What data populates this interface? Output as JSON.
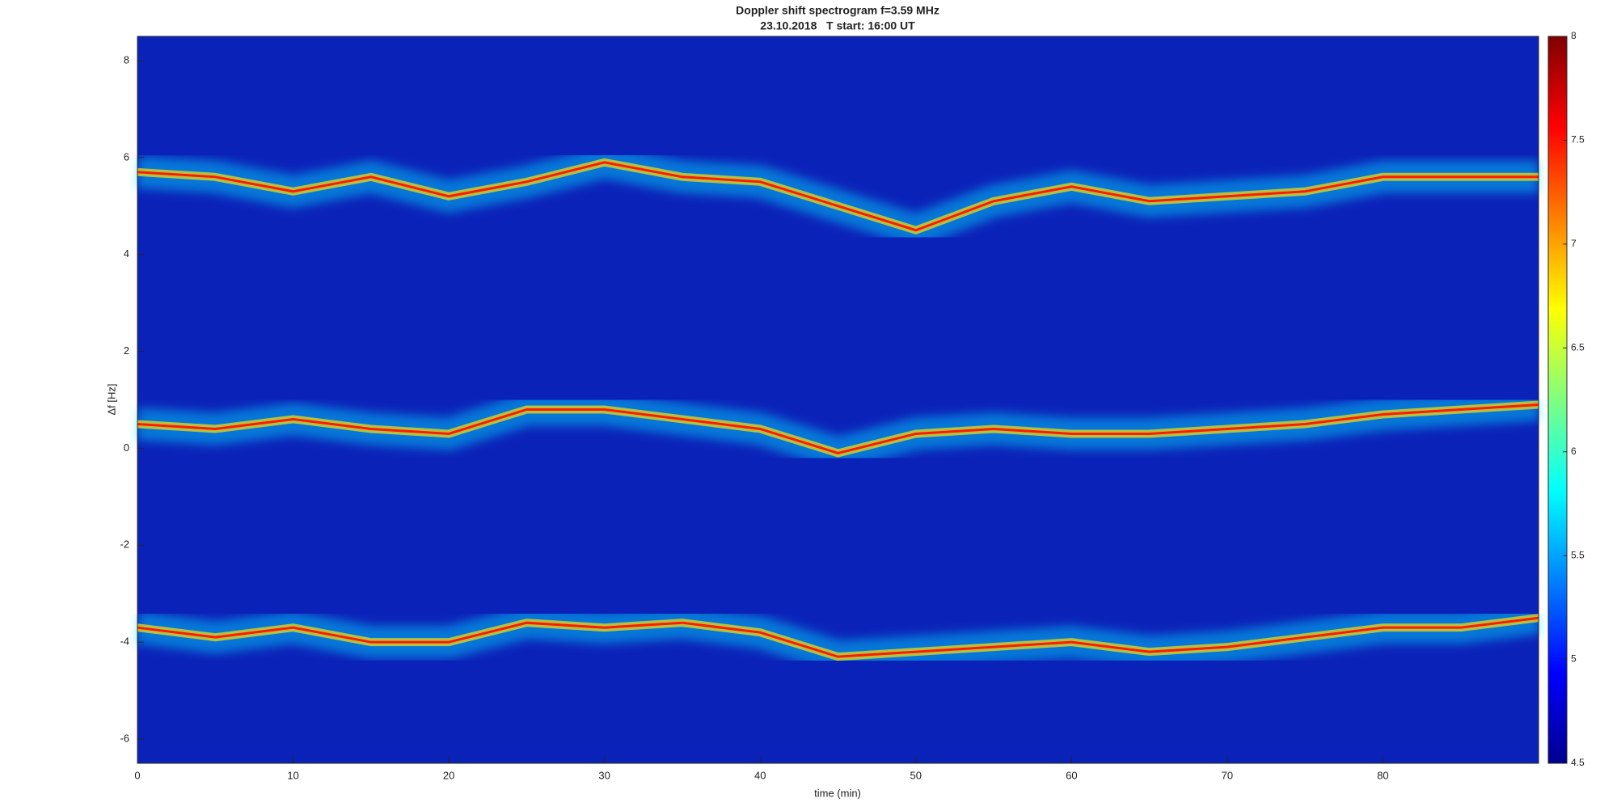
{
  "chart_data": {
    "type": "spectrogram",
    "title": "Doppler shift spectrogram f=3.59 MHz",
    "subtitle": "23.10.2018   T start: 16:00 UT",
    "x_label": "time (min)",
    "y_label": "Δf [Hz]",
    "xlim": [
      0,
      90
    ],
    "xticks": [
      0,
      10,
      20,
      30,
      40,
      50,
      60,
      70,
      80
    ],
    "ylim": [
      -6.5,
      8.5
    ],
    "yticks": [
      -6,
      -4,
      -2,
      0,
      2,
      4,
      6,
      8
    ],
    "background_color": "#0b22b8",
    "x": [
      0,
      5,
      10,
      15,
      20,
      25,
      30,
      35,
      40,
      45,
      50,
      55,
      60,
      65,
      70,
      75,
      80,
      85,
      90
    ],
    "series": [
      {
        "color": "#ff1a00",
        "values": [
          5.7,
          5.6,
          5.3,
          5.6,
          5.2,
          5.5,
          5.9,
          5.6,
          5.5,
          5.0,
          4.5,
          5.1,
          5.4,
          5.1,
          5.2,
          5.3,
          5.6,
          5.6,
          5.6
        ]
      },
      {
        "color": "#ff1a00",
        "values": [
          0.5,
          0.4,
          0.6,
          0.4,
          0.3,
          0.8,
          0.8,
          0.6,
          0.4,
          -0.1,
          0.3,
          0.4,
          0.3,
          0.3,
          0.4,
          0.5,
          0.7,
          0.8,
          0.9
        ]
      },
      {
        "color": "#ff1a00",
        "values": [
          -3.7,
          -3.9,
          -3.7,
          -4.0,
          -4.0,
          -3.6,
          -3.7,
          -3.6,
          -3.8,
          -4.3,
          -4.2,
          -4.1,
          -4.0,
          -4.2,
          -4.1,
          -3.9,
          -3.7,
          -3.7,
          -3.5
        ]
      }
    ],
    "colorbar": {
      "colormap": "jet",
      "lim": [
        4.5,
        8
      ],
      "ticks": [
        4.5,
        5,
        5.5,
        6,
        6.5,
        7,
        7.5,
        8
      ]
    }
  }
}
